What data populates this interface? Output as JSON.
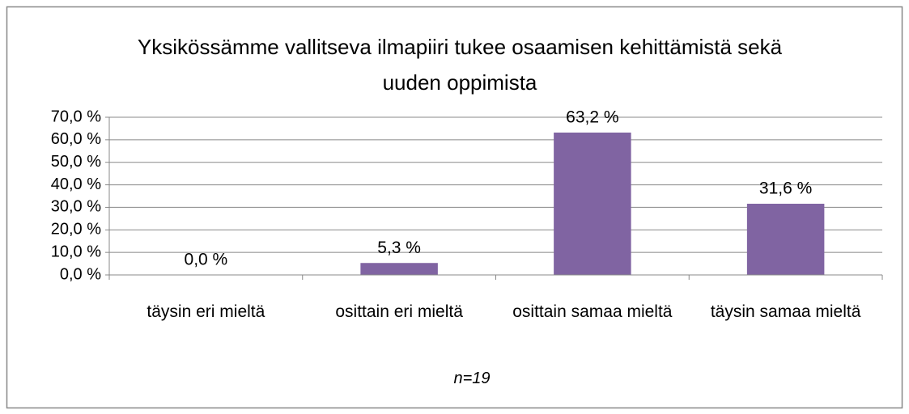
{
  "chart_data": {
    "type": "bar",
    "title": "Yksikössämme vallitseva ilmapiiri tukee osaamisen kehittämistä sekä uuden oppimista",
    "categories": [
      "täysin eri mieltä",
      "osittain eri mieltä",
      "osittain samaa mieltä",
      "täysin samaa mieltä"
    ],
    "values": [
      0.0,
      5.3,
      63.2,
      31.6
    ],
    "value_labels": [
      "0,0 %",
      "5,3 %",
      "63,2 %",
      "31,6 %"
    ],
    "color": "#8064a2",
    "ylim": [
      0,
      70
    ],
    "yticks": [
      {
        "value": 0,
        "label": "0,0 %"
      },
      {
        "value": 10,
        "label": "10,0 %"
      },
      {
        "value": 20,
        "label": "20,0 %"
      },
      {
        "value": 30,
        "label": "30,0 %"
      },
      {
        "value": 40,
        "label": "40,0 %"
      },
      {
        "value": 50,
        "label": "50,0 %"
      },
      {
        "value": 60,
        "label": "60,0 %"
      },
      {
        "value": 70,
        "label": "70,0 %"
      }
    ],
    "grid": true,
    "annotation": "n=19"
  }
}
